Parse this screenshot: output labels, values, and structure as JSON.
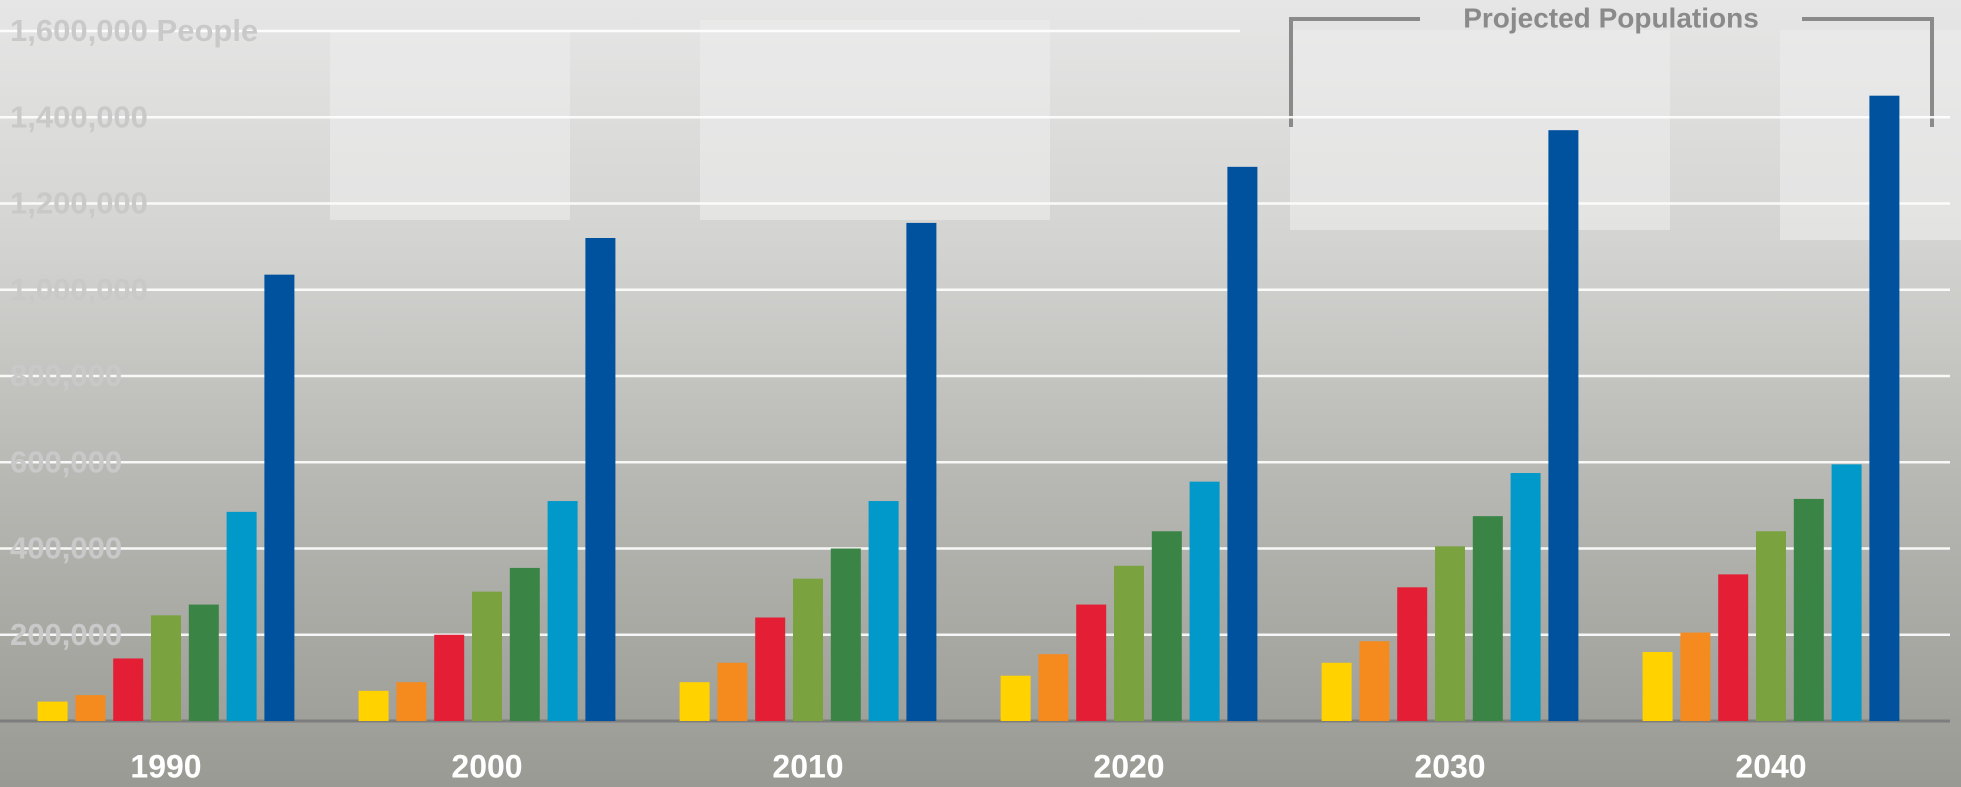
{
  "chart_data": {
    "type": "bar",
    "annotation": "Projected Populations",
    "categories": [
      "1990",
      "2000",
      "2010",
      "2020",
      "2030",
      "2040"
    ],
    "series": [
      {
        "color": "#ffd200",
        "values": [
          45000,
          70000,
          90000,
          105000,
          135000,
          160000
        ]
      },
      {
        "color": "#f58a1f",
        "values": [
          60000,
          90000,
          135000,
          155000,
          185000,
          205000
        ]
      },
      {
        "color": "#e41f35",
        "values": [
          145000,
          200000,
          240000,
          270000,
          310000,
          340000
        ]
      },
      {
        "color": "#7aa23f",
        "values": [
          245000,
          300000,
          330000,
          360000,
          405000,
          440000
        ]
      },
      {
        "color": "#3a8446",
        "values": [
          270000,
          355000,
          400000,
          440000,
          475000,
          515000
        ]
      },
      {
        "color": "#0099c9",
        "values": [
          485000,
          510000,
          510000,
          555000,
          575000,
          595000
        ]
      },
      {
        "color": "#00519e",
        "values": [
          1035000,
          1120000,
          1155000,
          1285000,
          1370000,
          1450000
        ]
      }
    ],
    "ylim": [
      0,
      1600000
    ],
    "yticks": [
      {
        "value": 200000,
        "label": "200,000"
      },
      {
        "value": 400000,
        "label": "400,000"
      },
      {
        "value": 600000,
        "label": "600,000"
      },
      {
        "value": 800000,
        "label": "800,000"
      },
      {
        "value": 1000000,
        "label": "1,000,000"
      },
      {
        "value": 1200000,
        "label": "1,200,000"
      },
      {
        "value": 1400000,
        "label": "1,400,000"
      },
      {
        "value": 1600000,
        "label": "1,600,000 People"
      }
    ],
    "grid": true
  }
}
